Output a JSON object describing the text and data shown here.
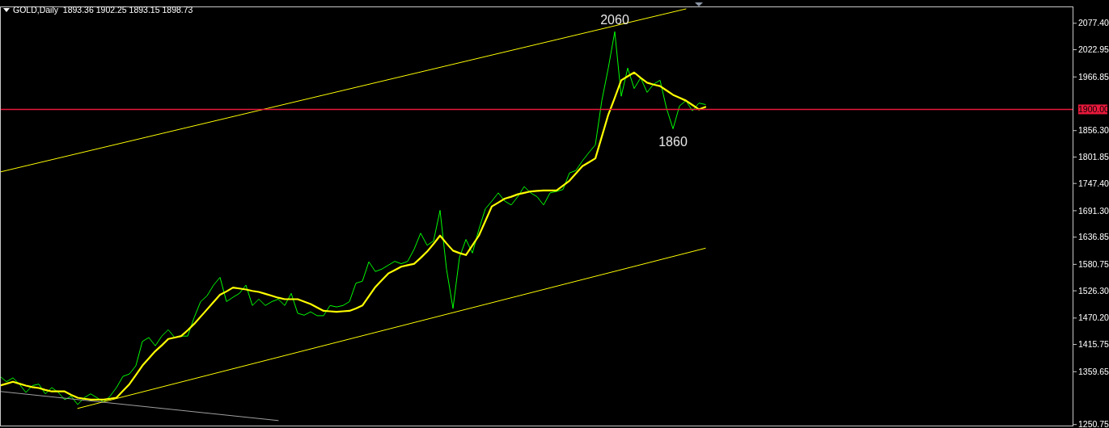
{
  "chart_data": {
    "type": "line",
    "title": "GOLD,Daily  1893.36 1902.25 1893.15 1898.73",
    "categories": [
      null,
      null,
      null,
      null,
      null,
      null,
      null,
      null,
      null,
      null,
      null,
      null,
      null,
      null,
      null,
      null,
      null,
      null,
      null,
      null,
      null,
      null,
      null,
      null,
      null,
      null,
      null,
      null,
      null,
      null,
      null,
      null,
      null,
      null,
      null,
      null,
      null,
      null,
      null,
      null,
      null,
      null,
      null,
      null,
      null,
      null,
      null,
      null,
      null,
      null,
      null,
      null,
      null,
      null,
      null,
      null,
      null,
      null,
      null,
      null,
      null,
      null,
      null,
      null,
      null,
      null,
      null,
      null,
      null,
      null,
      null,
      null,
      null,
      null,
      null,
      null,
      null,
      null,
      null,
      null,
      null,
      null,
      null,
      null,
      null,
      null,
      null,
      null,
      null,
      null,
      null,
      null,
      null,
      null,
      null,
      null,
      null,
      null,
      null,
      null,
      null,
      null,
      null,
      null,
      null,
      null,
      null,
      null,
      null,
      null
    ],
    "ylim": [
      1247,
      2112
    ],
    "yticks": [
      {
        "value": 2077.4,
        "label": "2077.40"
      },
      {
        "value": 2022.95,
        "label": "2022.95"
      },
      {
        "value": 1966.85,
        "label": "1966.85"
      },
      {
        "value": 1856.3,
        "label": "1856.30"
      },
      {
        "value": 1801.85,
        "label": "1801.85"
      },
      {
        "value": 1747.4,
        "label": "1747.40"
      },
      {
        "value": 1691.3,
        "label": "1691.30"
      },
      {
        "value": 1636.85,
        "label": "1636.85"
      },
      {
        "value": 1580.75,
        "label": "1580.75"
      },
      {
        "value": 1526.3,
        "label": "1526.30"
      },
      {
        "value": 1470.2,
        "label": "1470.20"
      },
      {
        "value": 1415.75,
        "label": "1415.75"
      },
      {
        "value": 1359.65,
        "label": "1359.65"
      },
      {
        "value": 1250.75,
        "label": "1250.75"
      }
    ],
    "tick_labels": "y",
    "series": [
      {
        "color": "#00ff00",
        "values": [
          1350,
          1339,
          1347,
          1334,
          1317,
          1331,
          1334,
          1314,
          1327,
          1317,
          1302,
          1309,
          1292,
          1306,
          1314,
          1306,
          1297,
          1309,
          1327,
          1350,
          1355,
          1372,
          1422,
          1430,
          1413,
          1433,
          1446,
          1430,
          1433,
          1433,
          1471,
          1504,
          1516,
          1538,
          1554,
          1504,
          1513,
          1521,
          1538,
          1496,
          1509,
          1496,
          1504,
          1509,
          1496,
          1521,
          1480,
          1476,
          1483,
          1475,
          1475,
          1496,
          1493,
          1496,
          1504,
          1542,
          1546,
          1586,
          1566,
          1571,
          1579,
          1587,
          1582,
          1587,
          1612,
          1645,
          1620,
          1629,
          1692,
          1571,
          1490,
          1595,
          1632,
          1604,
          1653,
          1695,
          1711,
          1728,
          1711,
          1703,
          1720,
          1741,
          1728,
          1720,
          1703,
          1728,
          1731,
          1735,
          1769,
          1774,
          1794,
          1811,
          1827,
          1918,
          1985,
          2060,
          1927,
          1985,
          1943,
          1965,
          1935,
          1952,
          1960,
          1902,
          1860,
          1907,
          1918,
          1897,
          1913,
          1910
        ]
      },
      {
        "color": "#ffff00",
        "values": [
          1331,
          1335,
          1339,
          1335,
          1331,
          1328,
          1326,
          1322,
          1319,
          1319,
          1319,
          1312,
          1306,
          1304,
          1302,
          1302,
          1302,
          1304,
          1306,
          1320,
          1334,
          1353,
          1372,
          1387,
          1402,
          1414,
          1427,
          1430,
          1433,
          1445,
          1458,
          1473,
          1488,
          1503,
          1518,
          1525,
          1533,
          1531,
          1529,
          1526,
          1524,
          1520,
          1516,
          1512,
          1509,
          1509,
          1509,
          1504,
          1499,
          1492,
          1485,
          1484,
          1483,
          1484,
          1485,
          1490,
          1496,
          1515,
          1534,
          1548,
          1562,
          1569,
          1576,
          1579,
          1582,
          1594,
          1607,
          1623,
          1640,
          1624,
          1609,
          1604,
          1600,
          1620,
          1640,
          1670,
          1700,
          1708,
          1716,
          1720,
          1725,
          1728,
          1731,
          1732,
          1733,
          1733,
          1733,
          1743,
          1753,
          1768,
          1783,
          1791,
          1799,
          1844,
          1889,
          1924,
          1960,
          1968,
          1976,
          1965,
          1955,
          1951,
          1948,
          1939,
          1930,
          1924,
          1918,
          1909,
          1900,
          1905
        ]
      },
      {
        "color": "#ffff00",
        "values": [
          1771,
          null,
          null,
          null,
          null,
          null,
          null,
          null,
          null,
          null,
          null,
          null,
          null,
          null,
          null,
          null,
          null,
          null,
          null,
          null,
          null,
          null,
          null,
          null,
          null,
          null,
          null,
          null,
          null,
          null,
          null,
          null,
          null,
          null,
          null,
          null,
          null,
          null,
          null,
          null,
          null,
          null,
          null,
          null,
          null,
          null,
          null,
          null,
          null,
          null,
          null,
          null,
          null,
          null,
          null,
          null,
          null,
          null,
          null,
          null,
          null,
          null,
          null,
          null,
          null,
          null,
          null,
          null,
          null,
          null,
          null,
          null,
          null,
          null,
          null,
          null,
          null,
          null,
          null,
          null,
          null,
          null,
          null,
          null,
          null,
          null,
          null,
          null,
          null,
          null,
          null,
          null,
          null,
          null,
          null,
          null,
          null,
          null,
          null,
          null,
          null,
          null,
          null,
          null,
          null,
          null,
          2107,
          null,
          null,
          null
        ]
      },
      {
        "color": "#ffff00",
        "values": [
          null,
          null,
          null,
          null,
          null,
          null,
          null,
          null,
          null,
          null,
          null,
          null,
          1284,
          null,
          null,
          null,
          null,
          null,
          null,
          null,
          null,
          null,
          null,
          null,
          null,
          null,
          null,
          null,
          null,
          null,
          null,
          null,
          null,
          null,
          null,
          null,
          null,
          null,
          null,
          null,
          null,
          null,
          null,
          null,
          null,
          null,
          null,
          null,
          null,
          null,
          null,
          null,
          null,
          null,
          null,
          null,
          null,
          null,
          null,
          null,
          null,
          null,
          null,
          null,
          null,
          null,
          null,
          null,
          null,
          null,
          null,
          null,
          null,
          null,
          null,
          null,
          null,
          null,
          null,
          null,
          null,
          null,
          null,
          null,
          null,
          null,
          null,
          null,
          null,
          null,
          null,
          null,
          null,
          null,
          null,
          null,
          null,
          null,
          null,
          null,
          null,
          null,
          null,
          null,
          null,
          null,
          null,
          null,
          null,
          1614
        ]
      },
      {
        "color": "#a0a0a0",
        "values": [
          1319,
          null,
          null,
          null,
          null,
          null,
          null,
          null,
          null,
          null,
          null,
          null,
          null,
          null,
          null,
          null,
          null,
          null,
          null,
          null,
          null,
          null,
          null,
          null,
          null,
          null,
          null,
          null,
          null,
          null,
          null,
          null,
          null,
          null,
          null,
          null,
          null,
          null,
          null,
          null,
          null,
          null,
          null,
          1259,
          null,
          null,
          null,
          null,
          null,
          null,
          null,
          null,
          null,
          null,
          null,
          null,
          null,
          null,
          null,
          null,
          null,
          null,
          null,
          null,
          null,
          null,
          null,
          null,
          null,
          null,
          null,
          null,
          null,
          null,
          null,
          null,
          null,
          null,
          null,
          null,
          null,
          null,
          null,
          null,
          null,
          null,
          null,
          null,
          null,
          null,
          null,
          null,
          null,
          null,
          null,
          null,
          null,
          null,
          null,
          null,
          null,
          null,
          null,
          null,
          null,
          null,
          null,
          null,
          null,
          null
        ]
      }
    ],
    "ref_lines": [
      {
        "axis": "y",
        "value": 1900,
        "label": "1900.00",
        "color": "#e8193c"
      }
    ],
    "annotations": [
      {
        "text": "2060",
        "y": 2060
      },
      {
        "text": "1860",
        "y": 1860
      }
    ]
  }
}
